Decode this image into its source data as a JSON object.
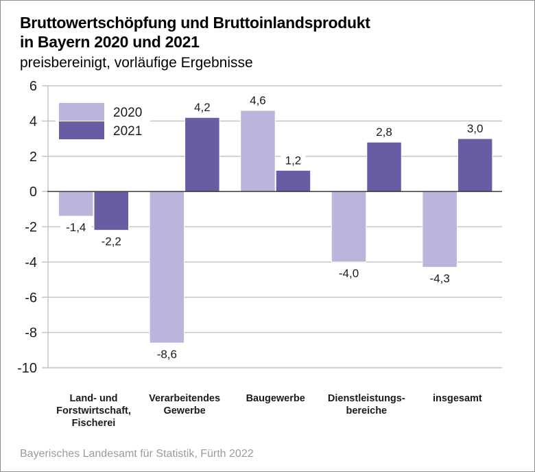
{
  "header": {
    "title_line1": "Bruttowertschöpfung und Bruttoinlandsprodukt",
    "title_line2": "in Bayern 2020 und 2021",
    "subtitle": "preisbereinigt, vorläufige Ergebnisse"
  },
  "footer": {
    "source": "Bayerisches Landesamt für Statistik, Fürth 2022"
  },
  "chart_data": {
    "type": "bar",
    "title": "Bruttowertschöpfung und Bruttoinlandsprodukt in Bayern 2020 und 2021",
    "subtitle": "preisbereinigt, vorläufige Ergebnisse",
    "xlabel": "",
    "ylabel": "",
    "ylim": [
      -10,
      6
    ],
    "yticks": [
      6,
      4,
      2,
      0,
      -2,
      -4,
      -6,
      -8,
      -10
    ],
    "grid": true,
    "legend": "top-left",
    "categories": [
      [
        "Land- und",
        "Forstwirtschaft,",
        "Fischerei"
      ],
      [
        "Verarbeitendes",
        "Gewerbe"
      ],
      [
        "Baugewerbe"
      ],
      [
        "Dienstleistungs-",
        "bereiche"
      ],
      [
        "insgesamt"
      ]
    ],
    "series": [
      {
        "name": "2020",
        "color": "#BAB5DA",
        "values": [
          -1.4,
          -8.6,
          4.6,
          -4.0,
          -4.3
        ],
        "labels": [
          "-1,4",
          "-8,6",
          "4,6",
          "-4,0",
          "-4,3"
        ]
      },
      {
        "name": "2021",
        "color": "#6A5CA3",
        "values": [
          -2.2,
          4.2,
          1.2,
          2.8,
          3.0
        ],
        "labels": [
          "-2,2",
          "4,2",
          "1,2",
          "2,8",
          "3,0"
        ]
      }
    ]
  }
}
